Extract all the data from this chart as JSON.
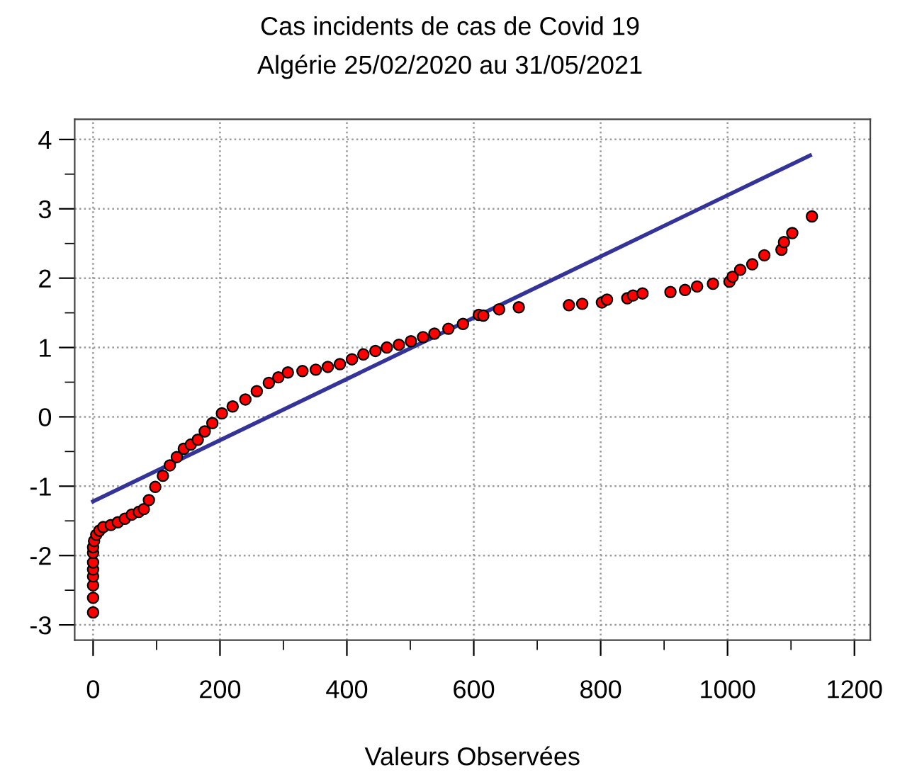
{
  "chart_data": {
    "type": "scatter",
    "title": "Cas incidents de cas de Covid 19",
    "subtitle": "Algérie 25/02/2020 au 31/05/2021",
    "xlabel": "Valeurs Observées",
    "xlim": [
      -29,
      1225
    ],
    "ylim": [
      -3.22,
      4.29
    ],
    "xticks": [
      0,
      {
        "value": 100,
        "label": null
      },
      200,
      {
        "value": 300,
        "label": null
      },
      400,
      {
        "value": 500,
        "label": null
      },
      600,
      {
        "value": 700,
        "label": null
      },
      800,
      {
        "value": 900,
        "label": null
      },
      1000,
      {
        "value": 1100,
        "label": null
      },
      1200
    ],
    "yticks": [
      -3,
      {
        "value": -2.5,
        "label": null
      },
      -2,
      {
        "value": -1.5,
        "label": null
      },
      -1,
      {
        "value": -0.5,
        "label": null
      },
      0,
      {
        "value": 0.5,
        "label": null
      },
      1,
      {
        "value": 1.5,
        "label": null
      },
      2,
      {
        "value": 2.5,
        "label": null
      },
      3,
      {
        "value": 3.5,
        "label": null
      },
      4
    ],
    "grid": true,
    "series": [
      {
        "color": "#ff0000",
        "marker": "circle",
        "x": [
          0,
          0,
          0,
          0,
          0,
          0,
          0,
          0,
          1.5,
          5,
          10,
          16,
          28,
          39,
          50,
          61,
          72,
          80,
          88,
          98,
          110,
          121,
          132,
          143,
          154,
          165,
          176,
          188,
          203,
          220,
          240,
          258,
          277,
          292,
          307,
          330,
          351,
          370,
          389,
          408,
          426,
          445,
          463,
          482,
          501,
          520,
          538,
          560,
          583,
          608,
          615,
          640,
          671,
          750,
          771,
          802,
          810,
          842,
          851,
          866,
          910,
          933,
          952,
          977,
          1003,
          1008,
          1020,
          1039,
          1058,
          1085,
          1089,
          1102,
          1133
        ],
        "values": [
          -2.82,
          -2.61,
          -2.43,
          -2.3,
          -2.2,
          -2.1,
          -1.96,
          -1.88,
          -1.79,
          -1.7,
          -1.64,
          -1.59,
          -1.56,
          -1.52,
          -1.47,
          -1.41,
          -1.37,
          -1.33,
          -1.2,
          -1.01,
          -0.85,
          -0.7,
          -0.58,
          -0.46,
          -0.4,
          -0.33,
          -0.21,
          -0.09,
          0.05,
          0.15,
          0.25,
          0.37,
          0.49,
          0.57,
          0.64,
          0.66,
          0.68,
          0.72,
          0.76,
          0.83,
          0.9,
          0.95,
          1.0,
          1.04,
          1.09,
          1.15,
          1.2,
          1.27,
          1.34,
          1.47,
          1.46,
          1.55,
          1.58,
          1.61,
          1.63,
          1.65,
          1.69,
          1.71,
          1.75,
          1.78,
          1.8,
          1.83,
          1.88,
          1.92,
          1.95,
          2.02,
          2.12,
          2.2,
          2.33,
          2.41,
          2.52,
          2.65,
          2.89
        ]
      },
      {
        "type": "line",
        "color": "#333399",
        "marker": "none",
        "x": [
          0,
          1130
        ],
        "values": [
          -1.22,
          3.77
        ]
      }
    ]
  }
}
